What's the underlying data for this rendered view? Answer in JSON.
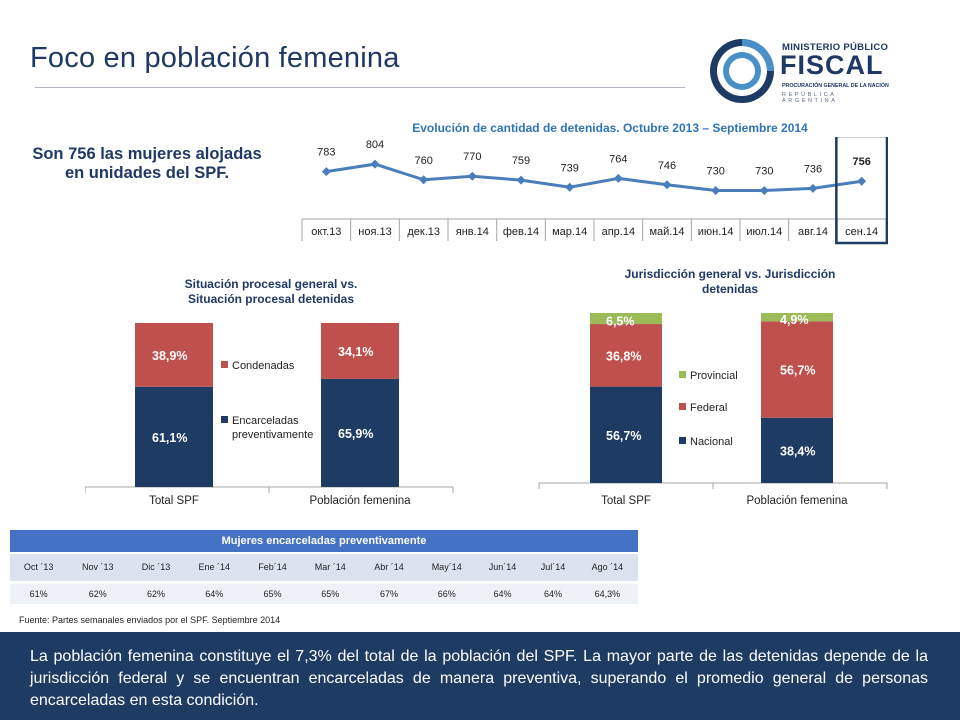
{
  "header": {
    "title": "Foco en población femenina",
    "logo": {
      "line1": "MINISTERIO PÚBLICO",
      "line2": "FISCAL",
      "line3": "PROCURACIÓN GENERAL DE LA NACIÓN",
      "line4": "REPÚBLICA ARGENTINA",
      "icon": "sun-circle-emblem"
    }
  },
  "summary_text": "Son 756 las mujeres alojadas en unidades del SPF.",
  "chart_data": [
    {
      "type": "line",
      "title": "Evolución de cantidad de detenidas. Octubre 2013 – Septiembre 2014",
      "categories": [
        "окт.13",
        "ноя.13",
        "дек.13",
        "янв.14",
        "фев.14",
        "мар.14",
        "апр.14",
        "май.14",
        "июн.14",
        "июл.14",
        "авг.14",
        "сен.14"
      ],
      "values": [
        783,
        804,
        760,
        770,
        759,
        739,
        764,
        746,
        730,
        730,
        736,
        756
      ],
      "labels": [
        "783",
        "804",
        "760",
        "770",
        "759",
        "739",
        "764",
        "746",
        "730",
        "730",
        "736",
        "756"
      ],
      "highlight_index": 11,
      "color": "#4a7ebb"
    },
    {
      "type": "bar",
      "stacked": true,
      "title": "Situación procesal general vs. Situación procesal detenidas",
      "categories": [
        "Total SPF",
        "Población femenina"
      ],
      "series": [
        {
          "name": "Encarceladas preventivamente",
          "values": [
            61.1,
            65.9
          ],
          "labels": [
            "61,1%",
            "65,9%"
          ],
          "color": "#1e3b63"
        },
        {
          "name": "Condenadas",
          "values": [
            38.9,
            34.1
          ],
          "labels": [
            "38,9%",
            "34,1%"
          ],
          "color": "#c0504d"
        }
      ],
      "legend_labels": [
        "Condenadas",
        "Encarceladas",
        "preventivamente"
      ],
      "ylim": [
        0,
        100
      ]
    },
    {
      "type": "bar",
      "stacked": true,
      "title": "Jurisdicción general vs. Jurisdicción detenidas",
      "categories": [
        "Total SPF",
        "Población femenina"
      ],
      "series": [
        {
          "name": "Nacional",
          "values": [
            56.7,
            38.4
          ],
          "labels": [
            "56,7%",
            "38,4%"
          ],
          "color": "#1e3b63"
        },
        {
          "name": "Federal",
          "values": [
            36.8,
            56.7
          ],
          "labels": [
            "36,8%",
            "56,7%"
          ],
          "color": "#c0504d"
        },
        {
          "name": "Provincial",
          "values": [
            6.5,
            4.9
          ],
          "labels": [
            "6,5%",
            "4,9%"
          ],
          "color": "#9bbb59"
        }
      ],
      "ylim": [
        0,
        100
      ]
    }
  ],
  "table": {
    "title": "Mujeres encarceladas preventivamente",
    "months": [
      "Oct ´13",
      "Nov ´13",
      "Dic ´13",
      "Ene ´14",
      "Feb´14",
      "Mar ´14",
      "Abr ´14",
      "May´14",
      "Jun´14",
      "Jul´14",
      "Ago ´14"
    ],
    "values": [
      "61%",
      "62%",
      "62%",
      "64%",
      "65%",
      "65%",
      "67%",
      "66%",
      "64%",
      "64%",
      "64,3%"
    ]
  },
  "source": "Fuente: Partes semanales enviados por el SPF. Septiembre 2014",
  "footer_text": "La población femenina constituye el 7,3% del total de la población del SPF. La mayor parte de las detenidas depende de la jurisdicción federal y se encuentran encarceladas de manera preventiva, superando el promedio general de personas encarceladas en esta condición."
}
